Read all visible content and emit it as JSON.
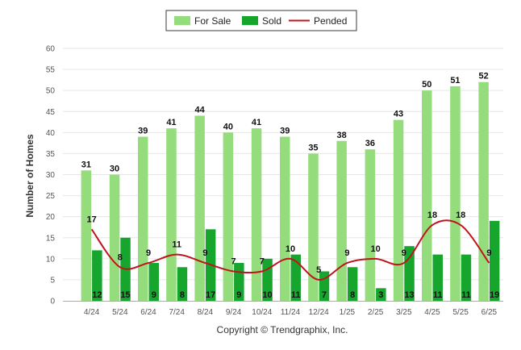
{
  "chart_data": {
    "type": "bar",
    "categories": [
      "4/24",
      "5/24",
      "6/24",
      "7/24",
      "8/24",
      "9/24",
      "10/24",
      "11/24",
      "12/24",
      "1/25",
      "2/25",
      "3/25",
      "4/25",
      "5/25",
      "6/25"
    ],
    "series": [
      {
        "name": "For Sale",
        "kind": "bar",
        "color": "#94dc7c",
        "values": [
          31,
          30,
          39,
          41,
          44,
          40,
          41,
          39,
          35,
          38,
          36,
          43,
          50,
          51,
          52
        ]
      },
      {
        "name": "Sold",
        "kind": "bar",
        "color": "#16a62e",
        "values": [
          12,
          15,
          9,
          8,
          17,
          9,
          10,
          11,
          7,
          8,
          3,
          13,
          11,
          11,
          19
        ]
      },
      {
        "name": "Pended",
        "kind": "line",
        "color": "#c0141c",
        "values": [
          17,
          8,
          9,
          11,
          9,
          7,
          7,
          10,
          5,
          9,
          10,
          9,
          18,
          18,
          9
        ]
      }
    ],
    "ylabel": "Number of Homes",
    "ylim": [
      0,
      60
    ],
    "yticks": [
      0,
      5,
      10,
      15,
      20,
      25,
      30,
      35,
      40,
      45,
      50,
      55,
      60
    ],
    "legend_position": "top-center",
    "grid": true
  },
  "footer": "Copyright © Trendgraphix, Inc."
}
